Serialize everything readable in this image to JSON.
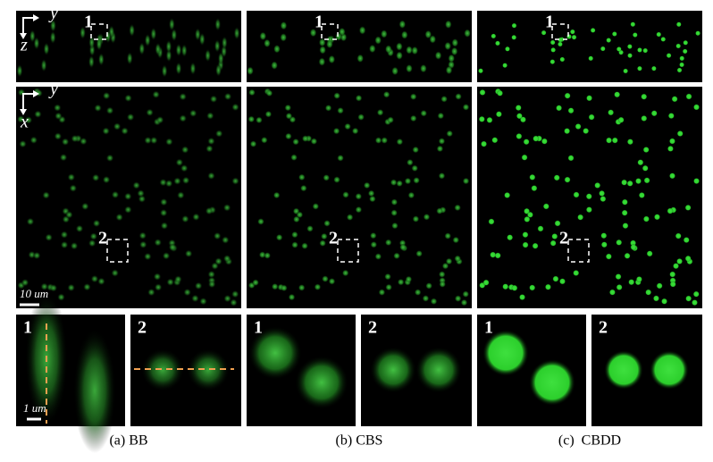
{
  "axes": {
    "strip": {
      "horizontal": "y",
      "vertical": "z"
    },
    "main": {
      "horizontal": "y",
      "vertical": "x"
    }
  },
  "region_labels": [
    "1",
    "2"
  ],
  "scale_bars": {
    "main": "10 um",
    "zoom": "1 um"
  },
  "columns": [
    {
      "caption": "(a) BB"
    },
    {
      "caption": "(b) CBS"
    },
    {
      "caption": "(c)  CBDD"
    }
  ]
}
